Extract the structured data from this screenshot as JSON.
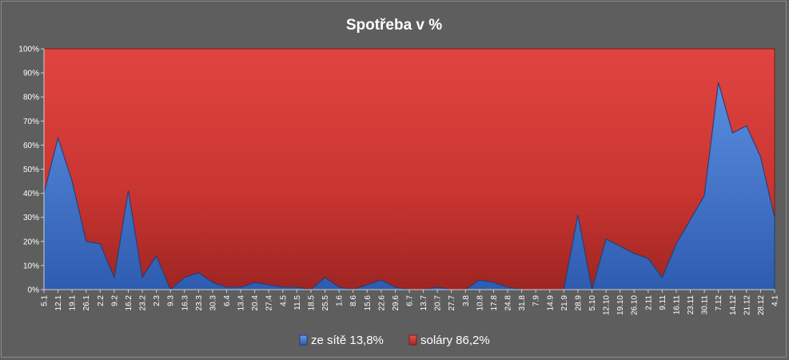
{
  "chart_data": {
    "type": "area",
    "stacked": true,
    "percent_stacked": true,
    "title": "Spotřeba v %",
    "xlabel": "",
    "ylabel": "",
    "ylim": [
      0,
      100
    ],
    "y_ticks": [
      "0%",
      "10%",
      "20%",
      "30%",
      "40%",
      "50%",
      "60%",
      "70%",
      "80%",
      "90%",
      "100%"
    ],
    "grid": false,
    "legend_position": "bottom",
    "categories": [
      "5.1",
      "12.1",
      "19.1",
      "26.1",
      "2.2",
      "9.2",
      "16.2",
      "23.2",
      "2.3",
      "9.3",
      "16.3",
      "23.3",
      "30.3",
      "6.4",
      "13.4",
      "20.4",
      "27.4",
      "4.5",
      "11.5",
      "18.5",
      "25.5",
      "1.6",
      "8.6",
      "15.6",
      "22.6",
      "29.6",
      "6.7",
      "13.7",
      "20.7",
      "27.7",
      "3.8",
      "10.8",
      "17.8",
      "24.8",
      "31.8",
      "7.9",
      "14.9",
      "21.9",
      "28.9",
      "5.10",
      "12.10",
      "19.10",
      "26.10",
      "2.11",
      "9.11",
      "16.11",
      "23.11",
      "30.11",
      "7.12",
      "14.12",
      "21.12",
      "28.12",
      "4.1"
    ],
    "series": [
      {
        "name": "ze sítě 13,8%",
        "color": "#3f74c7",
        "values": [
          40,
          63,
          45,
          20,
          19,
          5,
          41,
          5,
          14,
          0,
          5,
          7,
          3,
          1,
          1,
          3,
          2,
          1,
          1,
          0,
          5,
          1,
          0,
          2,
          4,
          1,
          0,
          0,
          1,
          0,
          0,
          4,
          3,
          1,
          0,
          0,
          0,
          0,
          31,
          0,
          21,
          18,
          15,
          13,
          5,
          19,
          29,
          39,
          86,
          65,
          68,
          55,
          30
        ]
      },
      {
        "name": "soláry 86,2%",
        "color": "#d23a36",
        "values": [
          60,
          37,
          55,
          80,
          81,
          95,
          59,
          95,
          86,
          100,
          95,
          93,
          97,
          99,
          99,
          97,
          98,
          99,
          99,
          100,
          95,
          99,
          100,
          98,
          96,
          99,
          100,
          100,
          99,
          100,
          100,
          96,
          97,
          99,
          100,
          100,
          100,
          100,
          69,
          100,
          79,
          82,
          85,
          87,
          95,
          81,
          71,
          61,
          14,
          35,
          32,
          45,
          70
        ]
      }
    ]
  }
}
